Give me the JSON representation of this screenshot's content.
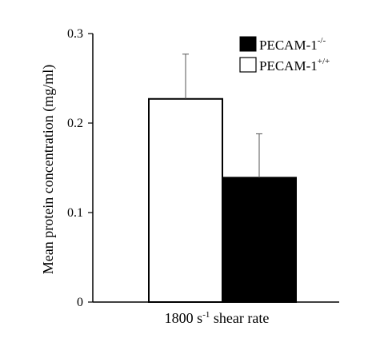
{
  "chart_data": {
    "type": "bar",
    "title": "",
    "categories": [
      "1800 s-1 shear rate"
    ],
    "xlabel": {
      "prefix": "1800 s",
      "sup": "-1",
      "suffix": " shear rate"
    },
    "ylabel": "Mean protein concentration (mg/ml)",
    "ylim": [
      0,
      0.3
    ],
    "yticks": [
      "0",
      "0.1",
      "0.2",
      "0.3"
    ],
    "ytick_values": [
      0,
      0.1,
      0.2,
      0.3
    ],
    "grid": false,
    "legend_position": "top-right",
    "series": [
      {
        "name": "PECAM-1",
        "sup": "+/+",
        "values": [
          0.227
        ],
        "error": [
          0.05
        ],
        "color": "#ffffff"
      },
      {
        "name": "PECAM-1",
        "sup": "-/-",
        "values": [
          0.139
        ],
        "error": [
          0.049
        ],
        "color": "#000000"
      }
    ],
    "legend": [
      {
        "name": "PECAM-1",
        "sup": "-/-",
        "color": "#000000"
      },
      {
        "name": "PECAM-1",
        "sup": "+/+",
        "color": "#ffffff"
      }
    ]
  }
}
